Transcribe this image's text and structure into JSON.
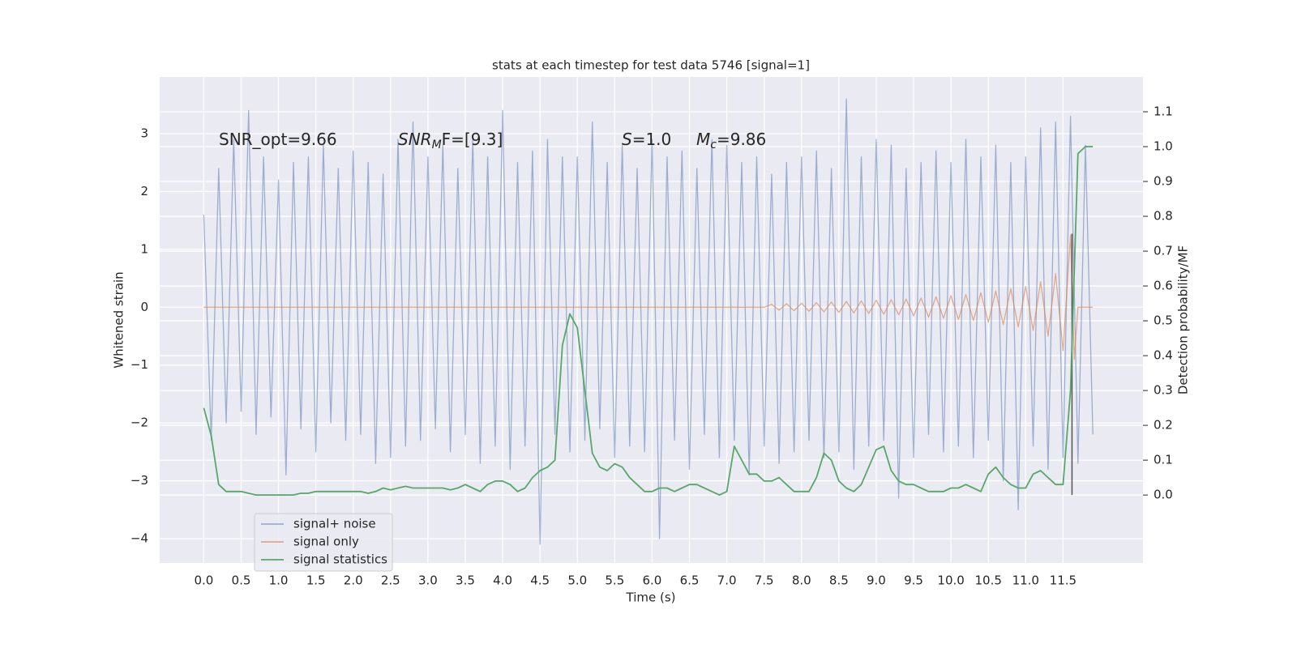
{
  "chart_data": {
    "type": "line",
    "title": "stats at each timestep for test data 5746 [signal=1]",
    "xlabel": "Time (s)",
    "ylabel": "Whitened strain",
    "y2label": "Detection probability/MF",
    "x": [
      0,
      0.1,
      0.2,
      0.3,
      0.4,
      0.5,
      0.6,
      0.7,
      0.8,
      0.9,
      1,
      1.1,
      1.2,
      1.3,
      1.4,
      1.5,
      1.6,
      1.7,
      1.8,
      1.9,
      2,
      2.1,
      2.2,
      2.3,
      2.4,
      2.5,
      2.6,
      2.7,
      2.8,
      2.9,
      3,
      3.1,
      3.2,
      3.3,
      3.4,
      3.5,
      3.6,
      3.7,
      3.8,
      3.9,
      4,
      4.1,
      4.2,
      4.3,
      4.4,
      4.5,
      4.6,
      4.7,
      4.8,
      4.9,
      5,
      5.1,
      5.2,
      5.3,
      5.4,
      5.5,
      5.6,
      5.7,
      5.8,
      5.9,
      6,
      6.1,
      6.2,
      6.3,
      6.4,
      6.5,
      6.6,
      6.7,
      6.8,
      6.9,
      7,
      7.1,
      7.2,
      7.3,
      7.4,
      7.5,
      7.6,
      7.7,
      7.8,
      7.9,
      8,
      8.1,
      8.2,
      8.3,
      8.4,
      8.5,
      8.6,
      8.7,
      8.8,
      8.9,
      9,
      9.1,
      9.2,
      9.3,
      9.4,
      9.5,
      9.6,
      9.7,
      9.8,
      9.9,
      10,
      10.1,
      10.2,
      10.3,
      10.4,
      10.5,
      10.6,
      10.7,
      10.8,
      10.9,
      11,
      11.1,
      11.2,
      11.3,
      11.4,
      11.5,
      11.6,
      11.7,
      11.8,
      11.9
    ],
    "series": [
      {
        "name": "signal+ noise",
        "color": "#4c72b0",
        "opacity": 0.5,
        "values": [
          1.6,
          -2.3,
          2.4,
          -2.0,
          2.9,
          -1.8,
          3.4,
          -2.2,
          2.6,
          -1.9,
          2.2,
          -2.9,
          2.5,
          -2.1,
          2.6,
          -2.5,
          2.8,
          -2.0,
          2.4,
          -2.3,
          2.7,
          -2.2,
          2.5,
          -2.7,
          2.3,
          -2.6,
          2.9,
          -2.4,
          3.2,
          -2.3,
          2.6,
          -2.1,
          2.8,
          -2.5,
          2.4,
          -2.2,
          2.9,
          -2.7,
          2.6,
          -2.4,
          3.4,
          -2.8,
          2.5,
          -2.4,
          2.7,
          -4.1,
          2.9,
          -2.2,
          2.6,
          -2.5,
          2.6,
          -2.3,
          3.2,
          -2.1,
          2.5,
          -2.6,
          2.8,
          -2.4,
          2.4,
          -2.5,
          2.9,
          -4.0,
          2.6,
          -2.3,
          2.7,
          -2.8,
          2.4,
          -2.2,
          2.9,
          -2.6,
          2.8,
          -2.3,
          2.5,
          -2.9,
          2.6,
          -2.4,
          2.3,
          -2.7,
          2.5,
          -2.5,
          2.6,
          -2.3,
          2.7,
          -2.6,
          2.4,
          -2.5,
          3.6,
          -2.8,
          2.6,
          -2.4,
          2.9,
          -2.3,
          2.8,
          -3.3,
          2.4,
          -2.6,
          2.5,
          -2.2,
          2.7,
          -2.5,
          2.5,
          -2.4,
          2.9,
          -2.6,
          2.6,
          -2.3,
          2.8,
          -3.0,
          2.5,
          -3.5,
          2.6,
          -2.4,
          3.1,
          -2.8,
          3.2,
          -2.6,
          3.3,
          -2.7,
          2.8,
          -2.2
        ]
      },
      {
        "name": "signal only",
        "color": "#dd8452",
        "opacity": 0.65,
        "x": [
          0,
          7.5,
          7.6,
          7.7,
          7.8,
          7.9,
          8,
          8.1,
          8.2,
          8.3,
          8.4,
          8.5,
          8.6,
          8.7,
          8.8,
          8.9,
          9,
          9.1,
          9.2,
          9.3,
          9.4,
          9.5,
          9.6,
          9.7,
          9.8,
          9.9,
          10,
          10.1,
          10.2,
          10.3,
          10.4,
          10.5,
          10.6,
          10.7,
          10.8,
          10.9,
          11,
          11.1,
          11.2,
          11.3,
          11.4,
          11.5,
          11.6,
          11.65,
          11.7,
          11.9
        ],
        "values": [
          0,
          0,
          0.05,
          -0.05,
          0.06,
          -0.06,
          0.07,
          -0.07,
          0.08,
          -0.08,
          0.09,
          -0.09,
          0.1,
          -0.1,
          0.11,
          -0.11,
          0.12,
          -0.12,
          0.13,
          -0.13,
          0.14,
          -0.15,
          0.16,
          -0.17,
          0.18,
          -0.19,
          0.2,
          -0.21,
          0.22,
          -0.23,
          0.25,
          -0.26,
          0.28,
          -0.3,
          0.32,
          -0.34,
          0.36,
          -0.4,
          0.44,
          -0.5,
          0.58,
          -0.75,
          1.25,
          -0.9,
          0,
          0
        ]
      },
      {
        "name": "signal statistics",
        "color": "#55a868",
        "axis": "y2",
        "values": [
          0.25,
          0.17,
          0.03,
          0.01,
          0.01,
          0.01,
          0.005,
          0,
          0,
          0,
          0,
          0,
          0,
          0.005,
          0.005,
          0.01,
          0.01,
          0.01,
          0.01,
          0.01,
          0.01,
          0.01,
          0.005,
          0.01,
          0.02,
          0.015,
          0.02,
          0.025,
          0.02,
          0.02,
          0.02,
          0.02,
          0.02,
          0.015,
          0.02,
          0.03,
          0.02,
          0.01,
          0.03,
          0.04,
          0.04,
          0.03,
          0.01,
          0.02,
          0.05,
          0.07,
          0.08,
          0.1,
          0.43,
          0.52,
          0.48,
          0.3,
          0.12,
          0.08,
          0.07,
          0.09,
          0.08,
          0.05,
          0.03,
          0.01,
          0.01,
          0.02,
          0.02,
          0.01,
          0.02,
          0.03,
          0.03,
          0.02,
          0.01,
          0,
          0.01,
          0.14,
          0.1,
          0.06,
          0.06,
          0.04,
          0.04,
          0.05,
          0.03,
          0.01,
          0.01,
          0.01,
          0.05,
          0.12,
          0.1,
          0.04,
          0.02,
          0.01,
          0.03,
          0.08,
          0.13,
          0.14,
          0.07,
          0.04,
          0.03,
          0.03,
          0.02,
          0.01,
          0.01,
          0.01,
          0.02,
          0.02,
          0.03,
          0.02,
          0.01,
          0.06,
          0.08,
          0.05,
          0.03,
          0.02,
          0.02,
          0.06,
          0.07,
          0.05,
          0.03,
          0.03,
          0.3,
          0.98,
          1.0,
          1.0
        ]
      }
    ],
    "marker_x": 11.62,
    "annotations": [
      {
        "text": "SNR_opt=9.66"
      },
      {
        "text": "SNR",
        "sub": "M",
        "suffix": "F=[9.3]",
        "italic": true
      },
      {
        "text": "S",
        "suffix": "=1.0",
        "italic": true
      },
      {
        "text": "M",
        "sub": "c",
        "suffix": "=9.86",
        "italic": true
      }
    ],
    "xlim": [
      -0.59,
      12.57
    ],
    "ylim": [
      -4.42,
      3.98
    ],
    "y2lim": [
      -0.195,
      1.2
    ],
    "xticks": [
      {
        "value": 0,
        "label": "0.0"
      },
      0.5,
      {
        "value": 1,
        "label": "1.0"
      },
      1.5,
      {
        "value": 2,
        "label": "2.0"
      },
      2.5,
      {
        "value": 3,
        "label": "3.0"
      },
      3.5,
      {
        "value": 4,
        "label": "4.0"
      },
      4.5,
      {
        "value": 5,
        "label": "5.0"
      },
      5.5,
      {
        "value": 6,
        "label": "6.0"
      },
      6.5,
      {
        "value": 7,
        "label": "7.0"
      },
      7.5,
      {
        "value": 8,
        "label": "8.0"
      },
      8.5,
      {
        "value": 9,
        "label": "9.0"
      },
      9.5,
      {
        "value": 10,
        "label": "10.0"
      },
      10.5,
      {
        "value": 11,
        "label": "11.0"
      },
      11.5
    ],
    "yticks": [
      {
        "value": -4,
        "label": "−4"
      },
      {
        "value": -3,
        "label": "−3"
      },
      {
        "value": -2,
        "label": "−2"
      },
      {
        "value": -1,
        "label": "−1"
      },
      0,
      1,
      2,
      3
    ],
    "y2ticks": [
      {
        "value": 0,
        "label": "0.0"
      },
      0.1,
      0.2,
      0.3,
      0.4,
      0.5,
      0.6,
      0.7,
      0.8,
      0.9,
      {
        "value": 1,
        "label": "1.0"
      },
      1.1
    ],
    "grid": true,
    "legend": "lower left"
  }
}
